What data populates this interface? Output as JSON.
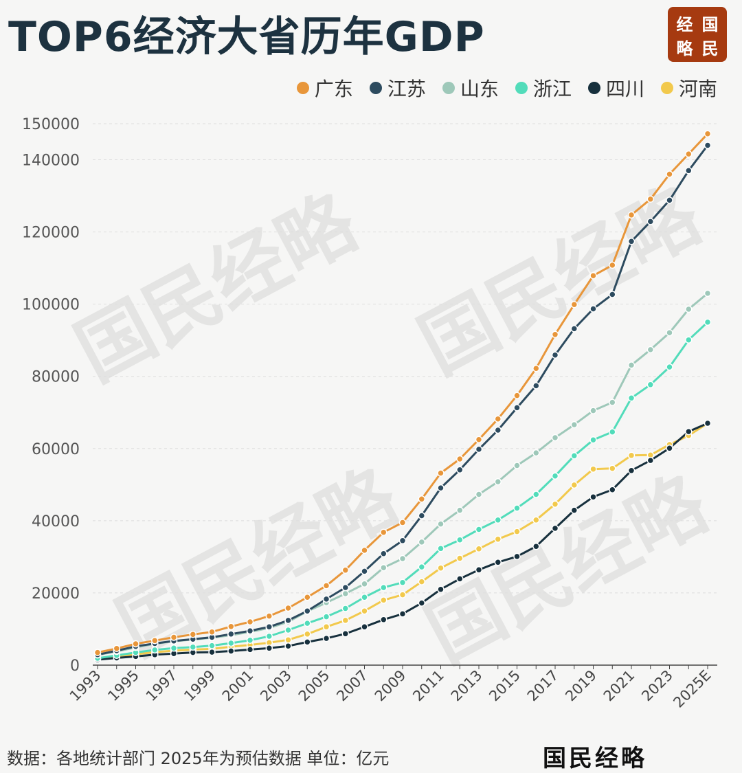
{
  "title": "TOP6经济大省历年GDP",
  "logo": [
    "经",
    "国",
    "略",
    "民"
  ],
  "footer": {
    "note": "数据：各地统计部门  2025年为预估数据 单位：亿元",
    "brand": "国民经略"
  },
  "watermark_text": "国民经略",
  "chart_data": {
    "type": "line",
    "title": "TOP6经济大省历年GDP",
    "xlabel": "",
    "ylabel": "",
    "ylim": [
      0,
      150000
    ],
    "yticks": [
      0,
      20000,
      40000,
      60000,
      80000,
      100000,
      120000,
      140000,
      150000
    ],
    "x": [
      "1993",
      "1994",
      "1995",
      "1996",
      "1997",
      "1998",
      "1999",
      "2000",
      "2001",
      "2002",
      "2003",
      "2004",
      "2005",
      "2006",
      "2007",
      "2008",
      "2009",
      "2010",
      "2011",
      "2012",
      "2013",
      "2014",
      "2015",
      "2016",
      "2017",
      "2018",
      "2019",
      "2020",
      "2021",
      "2022",
      "2023",
      "2024",
      "2025E"
    ],
    "xtick_labels": [
      "1993",
      "1995",
      "1997",
      "1999",
      "2001",
      "2003",
      "2005",
      "2007",
      "2009",
      "2011",
      "2013",
      "2015",
      "2017",
      "2019",
      "2021",
      "2023",
      "2025E"
    ],
    "legend_position": "top-right",
    "grid": "horizontal dashed",
    "series": [
      {
        "name": "广东",
        "color": "#e8963a",
        "values": [
          3500,
          4600,
          5900,
          6800,
          7700,
          8500,
          9200,
          10700,
          12000,
          13600,
          15800,
          18800,
          22000,
          26300,
          31800,
          36800,
          39500,
          46000,
          53200,
          57100,
          62500,
          68200,
          74700,
          82200,
          91600,
          99900,
          107900,
          110800,
          124700,
          129100,
          136000,
          141600,
          147200
        ]
      },
      {
        "name": "江苏",
        "color": "#2d4b5f",
        "values": [
          2900,
          4000,
          5200,
          6000,
          6700,
          7200,
          7700,
          8600,
          9500,
          10600,
          12400,
          15000,
          18300,
          21500,
          26000,
          30900,
          34500,
          41400,
          49100,
          54100,
          59800,
          65100,
          71300,
          77400,
          85900,
          93200,
          98700,
          102700,
          117400,
          122900,
          128800,
          137000,
          144000
        ]
      },
      {
        "name": "山东",
        "color": "#9ec8b9",
        "values": [
          2800,
          3800,
          4900,
          5900,
          6600,
          7100,
          7600,
          8300,
          9200,
          10300,
          12000,
          14900,
          17300,
          19800,
          22500,
          27000,
          29500,
          34100,
          39100,
          42900,
          47300,
          50800,
          55300,
          58800,
          63000,
          66600,
          70500,
          72800,
          83100,
          87400,
          92100,
          98600,
          103000
        ]
      },
      {
        "name": "浙江",
        "color": "#52dcba",
        "values": [
          1900,
          2700,
          3500,
          4200,
          4700,
          5000,
          5400,
          6100,
          6900,
          8000,
          9700,
          11600,
          13400,
          15700,
          18800,
          21500,
          22900,
          27200,
          32300,
          34700,
          37600,
          40200,
          43500,
          47300,
          52400,
          58000,
          62400,
          64600,
          74000,
          77700,
          82600,
          90100,
          95000
        ]
      },
      {
        "name": "四川",
        "color": "#17303d",
        "values": [
          1500,
          2000,
          2400,
          2900,
          3200,
          3500,
          3600,
          3900,
          4300,
          4700,
          5300,
          6400,
          7400,
          8700,
          10600,
          12600,
          14200,
          17200,
          21000,
          23900,
          26400,
          28500,
          30100,
          32900,
          37900,
          42900,
          46600,
          48600,
          53900,
          56700,
          60100,
          64700,
          67000
        ]
      },
      {
        "name": "河南",
        "color": "#f2c94c",
        "values": [
          1700,
          2200,
          3000,
          3600,
          4000,
          4300,
          4500,
          5100,
          5600,
          6200,
          7000,
          8600,
          10600,
          12400,
          15000,
          18000,
          19500,
          23100,
          26900,
          29600,
          32200,
          34900,
          37000,
          40200,
          44600,
          49900,
          54300,
          54500,
          58100,
          58200,
          61100,
          63600,
          67000
        ]
      }
    ]
  }
}
